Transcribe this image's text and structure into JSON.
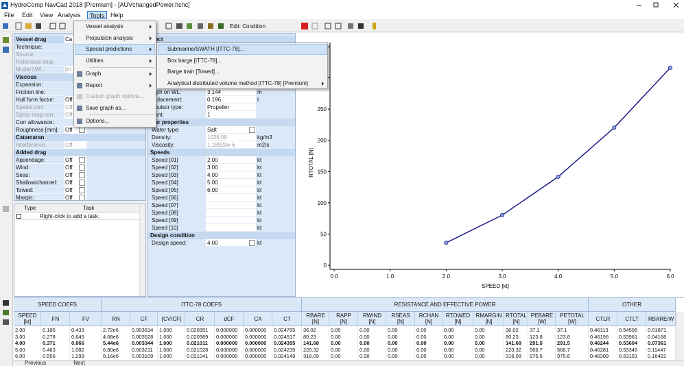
{
  "window": {
    "title": "HydroComp NavCad 2018 [Premium] - [AUVchangedPower.hcnc]"
  },
  "menu_bar": {
    "items": [
      "File",
      "Edit",
      "View",
      "Analysis",
      "Tools",
      "Help"
    ],
    "active": 4
  },
  "toolbar": {
    "mode_label": "Edit: Condition"
  },
  "vessel_drag": {
    "sections": [
      {
        "title": "Vessel drag",
        "value": "Ca",
        "rows": [
          {
            "label": "Technique:"
          },
          {
            "label": "Source:",
            "disabled": true
          },
          {
            "label": "Reference ship:",
            "disabled": true
          },
          {
            "label": "Model LWL:",
            "disabled": true,
            "value": "[m"
          }
        ]
      },
      {
        "title": "Viscous",
        "rows": [
          {
            "label": "Expansion:"
          },
          {
            "label": "Friction line:"
          },
          {
            "label": "Hull form factor:",
            "value": "Off"
          },
          {
            "label": "Speed corr:",
            "value": "Off",
            "disabled": true
          },
          {
            "label": "Spray drag corr:",
            "value": "Off",
            "disabled": true
          },
          {
            "label": "Corr allowance:"
          },
          {
            "label": "Roughness [mm]:",
            "value": "Off",
            "dropdown": true
          }
        ]
      },
      {
        "title": "Catamaran",
        "rows": [
          {
            "label": "Interference:",
            "value": "Off",
            "disabled": true
          }
        ]
      },
      {
        "title": "Added drag",
        "rows": [
          {
            "label": "Appendage:",
            "value": "Off",
            "dropdown": true
          },
          {
            "label": "Wind:",
            "value": "Off",
            "dropdown": true
          },
          {
            "label": "Seas:",
            "value": "Off",
            "dropdown": true
          },
          {
            "label": "Shallow/channel:",
            "value": "Off",
            "dropdown": true
          },
          {
            "label": "Towed:",
            "value": "Off",
            "dropdown": true
          },
          {
            "label": "Margin:",
            "value": "Off",
            "dropdown": true
          }
        ]
      }
    ]
  },
  "project": {
    "sections": [
      {
        "title": "oject",
        "rows": [
          {
            "label": "ngth on WL:",
            "value": "3.144",
            "unit": "m"
          },
          {
            "label": "isplacement:",
            "value": "0.196",
            "unit": "t"
          },
          {
            "label": "opulsor type:",
            "value": "Propeller"
          },
          {
            "label": "ount:",
            "value": "1"
          }
        ]
      },
      {
        "title": "ater properties",
        "rows": [
          {
            "label": "Water type:",
            "value": "Salt",
            "dropdown": true
          },
          {
            "label": "Density:",
            "value": "1026.00",
            "unit": "kg/m3",
            "disabled": true
          },
          {
            "label": "Viscosity:",
            "value": "1.18920e-6",
            "unit": "m2/s",
            "disabled": true
          }
        ]
      },
      {
        "title": "Speeds",
        "rows": [
          {
            "label": "Speed [01]",
            "value": "2.00",
            "unit": "kt"
          },
          {
            "label": "Speed [02]",
            "value": "3.00",
            "unit": "kt"
          },
          {
            "label": "Speed [03]",
            "value": "4.00",
            "unit": "kt"
          },
          {
            "label": "Speed [04]",
            "value": "5.00",
            "unit": "kt"
          },
          {
            "label": "Speed [05]",
            "value": "6.00",
            "unit": "kt"
          },
          {
            "label": "Speed [06]",
            "unit": "kt"
          },
          {
            "label": "Speed [07]",
            "unit": "kt"
          },
          {
            "label": "Speed [08]",
            "unit": "kt"
          },
          {
            "label": "Speed [09]",
            "unit": "kt"
          },
          {
            "label": "Speed [10]",
            "unit": "kt"
          }
        ]
      },
      {
        "title": "Design condition",
        "rows": [
          {
            "label": "Design speed:",
            "value": "4.00",
            "unit": "kt",
            "dropdown": true
          }
        ]
      }
    ]
  },
  "tasks": {
    "columns": [
      "Type",
      "Task"
    ],
    "placeholder": "Right-click to add a task."
  },
  "chart_data": {
    "type": "line",
    "x_label": "SPEED [kt]",
    "y_label": "RTOTAL [N]",
    "x": [
      2,
      3,
      4,
      5,
      6
    ],
    "values": [
      36.02,
      80.23,
      141.68,
      220.32,
      316.09
    ],
    "color": "#1c1c8a",
    "xlim": [
      0,
      6
    ],
    "ylim": [
      0,
      350
    ],
    "xticks": [
      {
        "value": 0,
        "label": "0.0"
      },
      {
        "value": 1,
        "label": "1.0"
      },
      {
        "value": 2,
        "label": "2.0"
      },
      {
        "value": 3,
        "label": "3.0"
      },
      {
        "value": 4,
        "label": "4.0"
      },
      {
        "value": 5,
        "label": "5.0"
      },
      {
        "value": 6,
        "label": "6.0"
      }
    ],
    "yticks": [
      0,
      50,
      100,
      150,
      200,
      250,
      300,
      350
    ]
  },
  "results_table": {
    "groups": [
      {
        "title": "SPEED COEFS",
        "span": 3
      },
      {
        "title": "ITTC-78 COEFS",
        "span": 7
      },
      {
        "title": "RESISTANCE AND EFFECTIVE POWER",
        "span": 10
      },
      {
        "title": "OTHER",
        "span": 3
      }
    ],
    "columns": [
      {
        "name": "SPEED",
        "unit": "[kt]"
      },
      {
        "name": "FN"
      },
      {
        "name": "FV"
      },
      {
        "name": "RN"
      },
      {
        "name": "CF"
      },
      {
        "name": "[CV/CF]"
      },
      {
        "name": "CR"
      },
      {
        "name": "dCF"
      },
      {
        "name": "CA"
      },
      {
        "name": "CT"
      },
      {
        "name": "RBARE",
        "unit": "[N]"
      },
      {
        "name": "RAPP",
        "unit": "[N]"
      },
      {
        "name": "RWIND",
        "unit": "[N]"
      },
      {
        "name": "RSEAS",
        "unit": "[N]"
      },
      {
        "name": "RCHAN",
        "unit": "[N]"
      },
      {
        "name": "RTOWED",
        "unit": "[N]"
      },
      {
        "name": "RMARGIN",
        "unit": "[N]"
      },
      {
        "name": "RTOTAL",
        "unit": "[N]"
      },
      {
        "name": "PEBARE",
        "unit": "[W]"
      },
      {
        "name": "PETOTAL",
        "unit": "[W]"
      },
      {
        "name": "CTLR"
      },
      {
        "name": "CTLT"
      },
      {
        "name": "RBARE/W"
      }
    ],
    "rows": [
      [
        "2.00",
        "0.185",
        "0.433",
        "2.72e6",
        "0.003814",
        "1.000",
        "0.020951",
        "0.000000",
        "0.000000",
        "0.024765",
        "36.02",
        "0.00",
        "0.00",
        "0.00",
        "0.00",
        "0.00",
        "0.00",
        "36.02",
        "37.1",
        "37.1",
        "0.46113",
        "0.54506",
        "0.01871"
      ],
      [
        "3.00",
        "0.278",
        "0.649",
        "4.08e6",
        "0.003528",
        "1.000",
        "0.020989",
        "0.000000",
        "0.000000",
        "0.024517",
        "80.23",
        "0.00",
        "0.00",
        "0.00",
        "0.00",
        "0.00",
        "0.00",
        "80.23",
        "123.8",
        "123.8",
        "0.46196",
        "0.53961",
        "0.04168"
      ],
      [
        "4.00",
        "0.371",
        "0.866",
        "5.44e6",
        "0.003344",
        "1.000",
        "0.021011",
        "0.000000",
        "0.000000",
        "0.024355",
        "141.68",
        "0.00",
        "0.00",
        "0.00",
        "0.00",
        "0.00",
        "0.00",
        "141.68",
        "291.5",
        "291.5",
        "0.46244",
        "0.53604",
        "0.07361"
      ],
      [
        "5.00",
        "0.463",
        "1.082",
        "6.80e6",
        "0.003211",
        "1.000",
        "0.021028",
        "0.000000",
        "0.000000",
        "0.024239",
        "220.32",
        "0.00",
        "0.00",
        "0.00",
        "0.00",
        "0.00",
        "0.00",
        "220.32",
        "566.7",
        "566.7",
        "0.46281",
        "0.53349",
        "0.11447"
      ],
      [
        "6.00",
        "0.556",
        "1.299",
        "8.16e6",
        "0.003109",
        "1.000",
        "0.021041",
        "0.000000",
        "0.000000",
        "0.024149",
        "316.09",
        "0.00",
        "0.00",
        "0.00",
        "0.00",
        "0.00",
        "0.00",
        "316.09",
        "975.6",
        "975.6",
        "0.46309",
        "0.53151",
        "0.16422"
      ]
    ],
    "bold_row": 2
  },
  "pager": {
    "previous": "Previous",
    "next": "Next"
  },
  "tools_menu": {
    "groups": [
      [
        {
          "label": "Vessel analysis",
          "submenu": true
        },
        {
          "label": "Propulsion analysis",
          "submenu": true
        },
        {
          "label": "Special predictions",
          "submenu": true,
          "highlighted": true
        },
        {
          "label": "Utilities",
          "submenu": true
        }
      ],
      [
        {
          "label": "Graph",
          "submenu": true
        },
        {
          "label": "Report",
          "submenu": true
        },
        {
          "label": "Custom graph options...",
          "disabled": true
        },
        {
          "label": "Save graph as..."
        }
      ],
      [
        {
          "label": "Options..."
        }
      ]
    ]
  },
  "submenu": {
    "items": [
      {
        "label": "Submarine/SWATH [ITTC-78]...",
        "highlighted": true
      },
      {
        "label": "Box barge [ITTC-78]..."
      },
      {
        "label": "Barge train [Towed]..."
      },
      {
        "label": "Analytical distributed volume method [ITTC-78] [Premium]",
        "submenu": true
      }
    ]
  }
}
